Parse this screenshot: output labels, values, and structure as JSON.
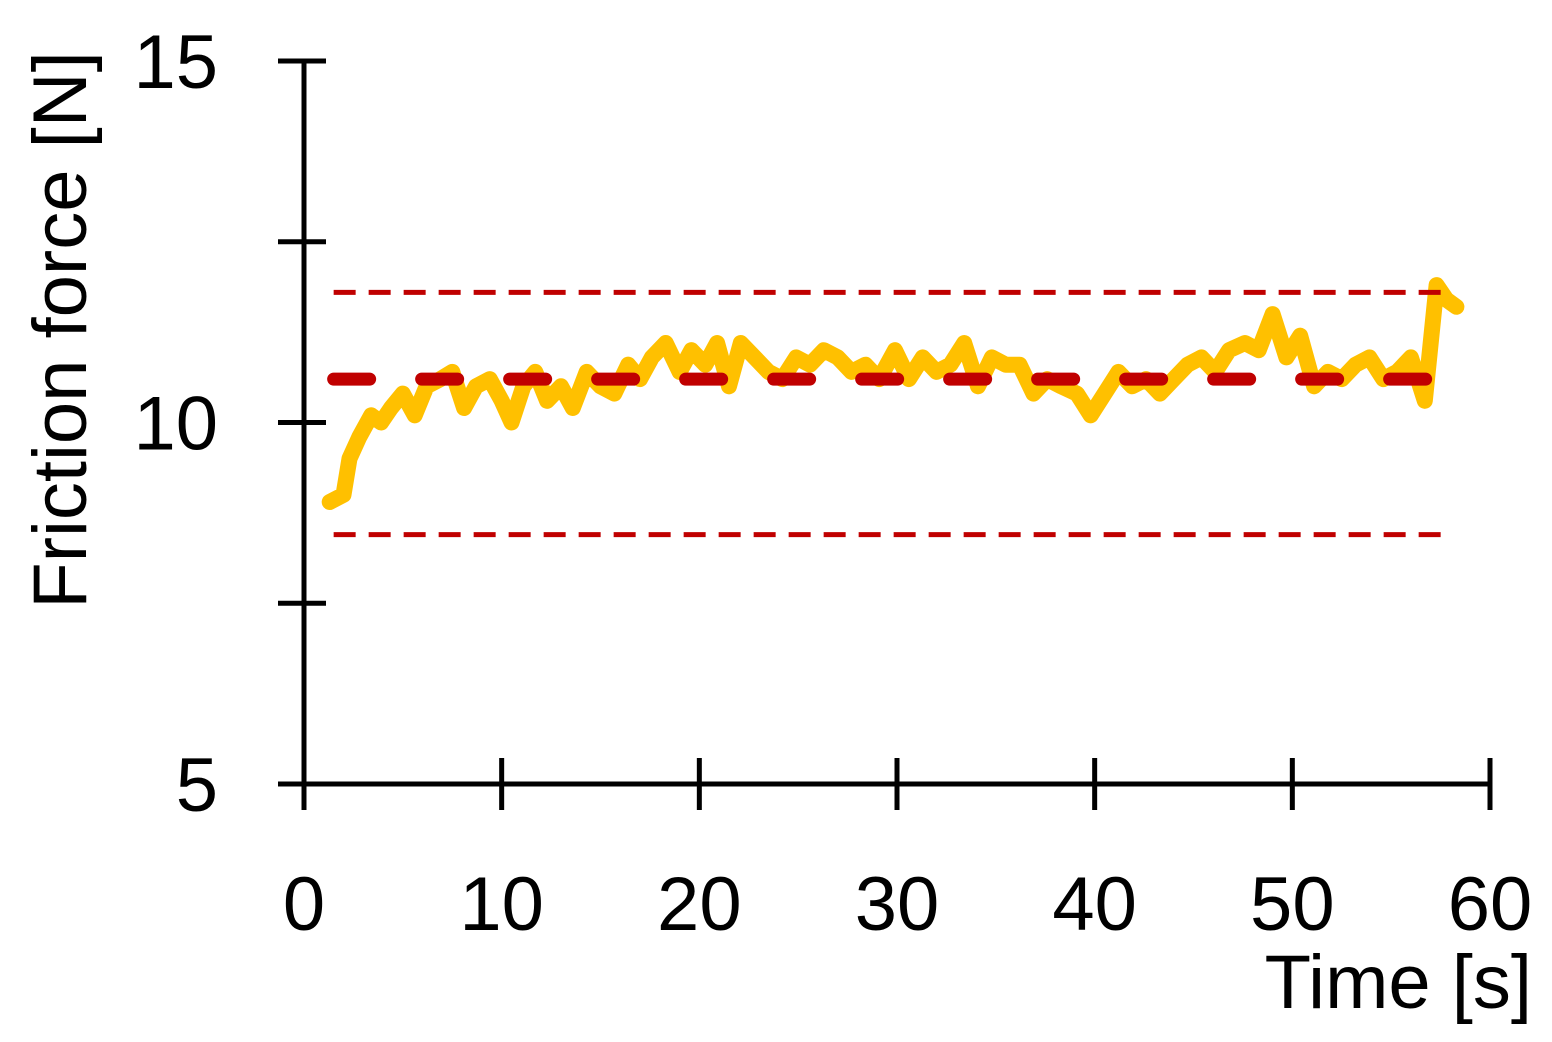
{
  "chart_data": {
    "type": "line",
    "title": "",
    "xlabel": "Time [s]",
    "ylabel": "Friction force [N]",
    "xlim": [
      0,
      60
    ],
    "ylim": [
      5,
      15
    ],
    "x_ticks": [
      0,
      10,
      20,
      30,
      40,
      50,
      60
    ],
    "x_tick_labels": [
      "0",
      "10",
      "20",
      "30",
      "40",
      "50",
      "60"
    ],
    "y_ticks": [
      5,
      7.5,
      10,
      12.5,
      15
    ],
    "y_tick_labels": [
      "5",
      "",
      "10",
      "",
      "15"
    ],
    "grid": false,
    "legend": "none",
    "series": [
      {
        "type": "line",
        "color": "#FFC000",
        "x": [
          1.3,
          2.0,
          2.3,
          2.8,
          3.4,
          3.9,
          4.4,
          5.0,
          5.6,
          6.2,
          6.9,
          7.5,
          8.1,
          8.7,
          9.4,
          10.0,
          10.5,
          11.1,
          11.7,
          12.3,
          13.0,
          13.6,
          14.3,
          15.0,
          15.7,
          16.4,
          17.0,
          17.6,
          18.3,
          19.0,
          19.6,
          20.3,
          20.9,
          21.5,
          22.1,
          22.8,
          23.5,
          24.2,
          24.9,
          25.6,
          26.3,
          27.0,
          27.7,
          28.4,
          29.1,
          29.9,
          30.6,
          31.3,
          32.0,
          32.7,
          33.4,
          34.1,
          34.8,
          35.5,
          36.2,
          36.9,
          37.6,
          38.3,
          39.1,
          39.8,
          40.5,
          41.2,
          41.9,
          42.6,
          43.3,
          44.0,
          44.7,
          45.4,
          46.1,
          46.8,
          47.6,
          48.3,
          49.0,
          49.7,
          50.4,
          51.1,
          51.8,
          52.5,
          53.2,
          53.9,
          54.6,
          55.3,
          56.0,
          56.7,
          57.3,
          57.8,
          58.3
        ],
        "y": [
          8.9,
          9.0,
          9.5,
          9.8,
          10.1,
          10.0,
          10.2,
          10.4,
          10.1,
          10.5,
          10.6,
          10.7,
          10.2,
          10.5,
          10.6,
          10.3,
          10.0,
          10.5,
          10.7,
          10.3,
          10.5,
          10.2,
          10.7,
          10.5,
          10.4,
          10.8,
          10.6,
          10.9,
          11.1,
          10.7,
          11.0,
          10.8,
          11.1,
          10.5,
          11.1,
          10.9,
          10.7,
          10.6,
          10.9,
          10.8,
          11.0,
          10.9,
          10.7,
          10.8,
          10.6,
          11.0,
          10.6,
          10.9,
          10.7,
          10.8,
          11.1,
          10.5,
          10.9,
          10.8,
          10.8,
          10.4,
          10.6,
          10.5,
          10.4,
          10.1,
          10.4,
          10.7,
          10.5,
          10.6,
          10.4,
          10.6,
          10.8,
          10.9,
          10.7,
          11.0,
          11.1,
          11.0,
          11.5,
          10.9,
          11.2,
          10.5,
          10.7,
          10.6,
          10.8,
          10.9,
          10.6,
          10.7,
          10.9,
          10.3,
          11.9,
          11.7,
          11.6
        ]
      },
      {
        "type": "hline",
        "color": "#C00000",
        "y": 10.6,
        "x_range": [
          1.5,
          57.2
        ],
        "style": "long-dash"
      },
      {
        "type": "hline",
        "color": "#C00000",
        "y": 11.8,
        "x_range": [
          1.5,
          57.8
        ],
        "style": "dash"
      },
      {
        "type": "hline",
        "color": "#C00000",
        "y": 8.45,
        "x_range": [
          1.5,
          57.8
        ],
        "style": "dash"
      }
    ]
  }
}
